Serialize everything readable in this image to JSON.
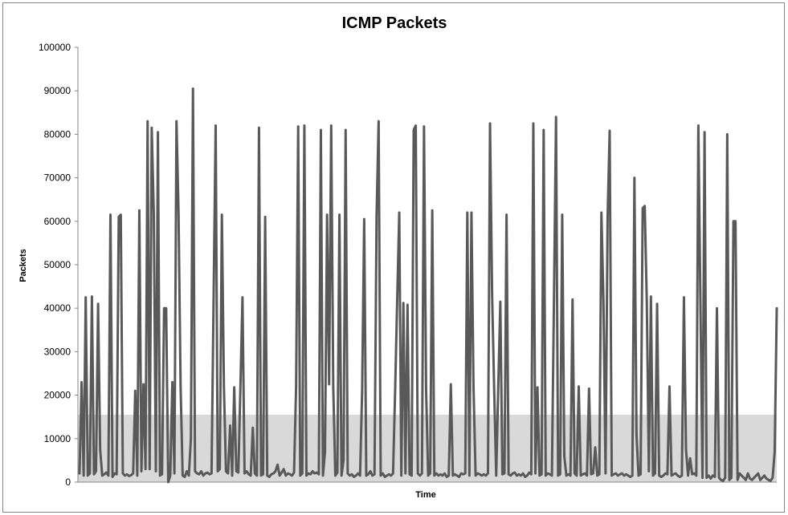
{
  "chart_data": {
    "type": "line",
    "title": "ICMP Packets",
    "xlabel": "Time",
    "ylabel": "Packets",
    "ylim": [
      0,
      100000
    ],
    "yticks": [
      0,
      10000,
      20000,
      30000,
      40000,
      50000,
      60000,
      70000,
      80000,
      90000,
      100000
    ],
    "grid": false,
    "legend": "none",
    "threshold_band": {
      "from": 0,
      "to": 15500,
      "color": "#d9d9d9"
    },
    "series": [
      {
        "color": "#595959",
        "values": [
          2000,
          23000,
          1500,
          42500,
          1500,
          2000,
          42700,
          1800,
          2500,
          41000,
          7500,
          1500,
          1800,
          2200,
          1500,
          61500,
          1200,
          2000,
          1800,
          61000,
          61500,
          2000,
          1500,
          1800,
          1400,
          1600,
          2000,
          21000,
          1500,
          62500,
          2500,
          22500,
          3000,
          83000,
          3000,
          81500,
          62000,
          2500,
          80500,
          1500,
          1800,
          40000,
          40000,
          0,
          1500,
          23000,
          2000,
          83000,
          62000,
          22000,
          1500,
          1200,
          2500,
          1500,
          10000,
          90500,
          2500,
          2000,
          1800,
          2500,
          1500,
          2000,
          2200,
          1800,
          2000,
          42200,
          82000,
          2500,
          3000,
          61500,
          22000,
          2500,
          2000,
          13000,
          1500,
          21800,
          2500,
          2200,
          22000,
          42500,
          2000,
          2500,
          1800,
          1500,
          12500,
          2000,
          1500,
          81500,
          1500,
          1800,
          61000,
          1500,
          1200,
          1800,
          2000,
          2500,
          4000,
          1500,
          2200,
          3000,
          1500,
          2000,
          1800,
          1500,
          2200,
          22000,
          81800,
          1500,
          2000,
          82000,
          1500,
          2000,
          1800,
          2500,
          2000,
          2200,
          1800,
          81000,
          1500,
          7000,
          61500,
          22500,
          82000,
          22000,
          1500,
          2200,
          61500,
          1500,
          5000,
          81000,
          2000,
          1500,
          1800,
          1200,
          1500,
          2000,
          1500,
          20800,
          60500,
          1500,
          1800,
          2500,
          1500,
          1800,
          61200,
          83000,
          1500,
          2000,
          1200,
          1500,
          1800,
          1500,
          2000,
          21000,
          42000,
          62000,
          1500,
          41200,
          2000,
          40800,
          1800,
          1500,
          81000,
          82000,
          2000,
          1500,
          2000,
          81800,
          21500,
          1500,
          2000,
          62500,
          1500,
          2000,
          1500,
          1800,
          1500,
          2000,
          1200,
          1500,
          22500,
          1500,
          1800,
          1500,
          1200,
          2000,
          1800,
          2000,
          62000,
          1500,
          62000,
          21800,
          1500,
          2000,
          1800,
          1500,
          1800,
          1500,
          2000,
          82500,
          43500,
          21500,
          1500,
          22000,
          41500,
          1800,
          2000,
          61500,
          1800,
          1500,
          2000,
          2200,
          1500,
          1800,
          1500,
          2000,
          1200,
          1500,
          2200,
          1800,
          82500,
          2000,
          21800,
          1500,
          1800,
          81000,
          1500,
          2000,
          1800,
          1500,
          42000,
          84000,
          1500,
          1800,
          61500,
          6000,
          1500,
          1800,
          1500,
          42000,
          2000,
          1500,
          22000,
          1500,
          1800,
          2000,
          1500,
          21500,
          1800,
          2000,
          8000,
          1500,
          1800,
          62000,
          41500,
          2000,
          61000,
          80800,
          1500,
          1800,
          2000,
          1500,
          1800,
          2000,
          1500,
          1800,
          1500,
          1200,
          1500,
          70000,
          11000,
          1500,
          1800,
          63000,
          63500,
          41500,
          2500,
          42700,
          1500,
          2000,
          41000,
          1500,
          1200,
          1500,
          2000,
          1800,
          22000,
          1500,
          1800,
          2000,
          1500,
          1200,
          1500,
          42500,
          7500,
          1500,
          5500,
          1800,
          2000,
          1500,
          82000,
          41000,
          1000,
          80500,
          1000,
          1500,
          800,
          1500,
          1200,
          40000,
          1000,
          500,
          300,
          1000,
          80000,
          500,
          1000,
          60000,
          60000,
          500,
          2000,
          1500,
          1000,
          500,
          2000,
          800,
          500,
          1000,
          1500,
          2000,
          500,
          1000,
          1500,
          800,
          500,
          300,
          1000,
          7000,
          40000
        ]
      }
    ]
  }
}
